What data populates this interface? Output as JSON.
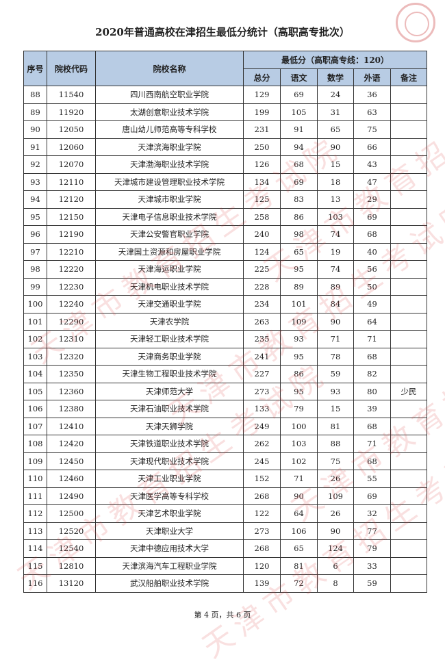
{
  "title": "2020年普通高校在津招生最低分统计（高职高专批次）",
  "table": {
    "headers": {
      "seq": "序号",
      "code": "院校代码",
      "name": "院校名称",
      "group": "最低分（高职高专线：120）",
      "total": "总分",
      "chinese": "语文",
      "math": "数学",
      "foreign": "外语",
      "note": "备注"
    },
    "rows": [
      [
        "88",
        "11540",
        "四川西南航空职业学院",
        "129",
        "69",
        "24",
        "36",
        ""
      ],
      [
        "89",
        "11920",
        "太湖创意职业技术学院",
        "199",
        "105",
        "31",
        "63",
        ""
      ],
      [
        "90",
        "12050",
        "唐山幼儿师范高等专科学校",
        "231",
        "91",
        "65",
        "75",
        ""
      ],
      [
        "91",
        "12060",
        "天津滨海职业学院",
        "250",
        "94",
        "90",
        "66",
        ""
      ],
      [
        "92",
        "12070",
        "天津渤海职业技术学院",
        "126",
        "68",
        "15",
        "43",
        ""
      ],
      [
        "93",
        "12110",
        "天津城市建设管理职业技术学院",
        "134",
        "69",
        "18",
        "47",
        ""
      ],
      [
        "94",
        "12120",
        "天津城市职业学院",
        "125",
        "83",
        "13",
        "29",
        ""
      ],
      [
        "95",
        "12150",
        "天津电子信息职业技术学院",
        "258",
        "86",
        "103",
        "69",
        ""
      ],
      [
        "96",
        "12190",
        "天津公安警官职业学院",
        "240",
        "98",
        "74",
        "68",
        ""
      ],
      [
        "97",
        "12210",
        "天津国土资源和房屋职业学院",
        "124",
        "65",
        "19",
        "40",
        ""
      ],
      [
        "98",
        "12220",
        "天津海运职业学院",
        "225",
        "95",
        "74",
        "56",
        ""
      ],
      [
        "99",
        "12230",
        "天津机电职业技术学院",
        "228",
        "89",
        "89",
        "50",
        ""
      ],
      [
        "100",
        "12240",
        "天津交通职业学院",
        "234",
        "101",
        "84",
        "49",
        ""
      ],
      [
        "101",
        "12290",
        "天津农学院",
        "263",
        "109",
        "90",
        "64",
        ""
      ],
      [
        "102",
        "12310",
        "天津轻工职业技术学院",
        "235",
        "93",
        "71",
        "71",
        ""
      ],
      [
        "103",
        "12320",
        "天津商务职业学院",
        "241",
        "95",
        "78",
        "68",
        ""
      ],
      [
        "104",
        "12350",
        "天津生物工程职业技术学院",
        "227",
        "86",
        "59",
        "82",
        ""
      ],
      [
        "105",
        "12360",
        "天津师范大学",
        "273",
        "95",
        "93",
        "80",
        "少民"
      ],
      [
        "106",
        "12380",
        "天津石油职业技术学院",
        "133",
        "79",
        "15",
        "39",
        ""
      ],
      [
        "107",
        "12410",
        "天津天狮学院",
        "249",
        "100",
        "81",
        "68",
        ""
      ],
      [
        "108",
        "12420",
        "天津铁道职业技术学院",
        "262",
        "103",
        "88",
        "71",
        ""
      ],
      [
        "109",
        "12450",
        "天津现代职业技术学院",
        "245",
        "102",
        "75",
        "68",
        ""
      ],
      [
        "110",
        "12460",
        "天津工业职业学院",
        "152",
        "71",
        "26",
        "55",
        ""
      ],
      [
        "111",
        "12490",
        "天津医学高等专科学校",
        "268",
        "90",
        "109",
        "69",
        ""
      ],
      [
        "112",
        "12500",
        "天津艺术职业学院",
        "122",
        "64",
        "26",
        "32",
        ""
      ],
      [
        "113",
        "12520",
        "天津职业大学",
        "273",
        "106",
        "90",
        "77",
        ""
      ],
      [
        "114",
        "12540",
        "天津中德应用技术大学",
        "268",
        "65",
        "124",
        "79",
        ""
      ],
      [
        "115",
        "12810",
        "天津滨海汽车工程职业学院",
        "120",
        "81",
        "6",
        "33",
        ""
      ],
      [
        "116",
        "13120",
        "武汉船舶职业技术学院",
        "139",
        "72",
        "8",
        "59",
        ""
      ]
    ]
  },
  "footer": "第 4 页，共 6 页",
  "watermark": "天津市教育招生考试院",
  "colors": {
    "header_bg": "#b8cce4",
    "watermark": "#dc3c3c"
  }
}
